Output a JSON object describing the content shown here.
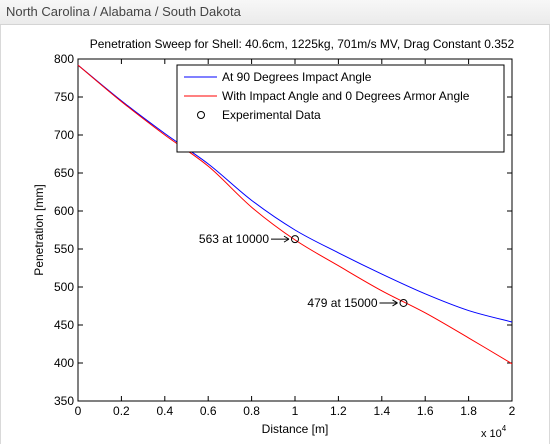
{
  "window": {
    "title": "North Carolina / Alabama / South Dakota"
  },
  "chart_data": {
    "type": "line",
    "title": "Penetration Sweep for Shell: 40.6cm, 1225kg, 701m/s MV, Drag Constant 0.352",
    "xlabel": "Distance [m]",
    "ylabel": "Penetration [mm]",
    "x_exponent_label": "x 10",
    "x_exponent_power": "4",
    "xlim": [
      0,
      20000
    ],
    "ylim": [
      350,
      800
    ],
    "x_ticks": [
      0,
      2000,
      4000,
      6000,
      8000,
      10000,
      12000,
      14000,
      16000,
      18000,
      20000
    ],
    "x_tick_labels": [
      "0",
      "0.2",
      "0.4",
      "0.6",
      "0.8",
      "1",
      "1.2",
      "1.4",
      "1.6",
      "1.8",
      "2"
    ],
    "y_ticks": [
      350,
      400,
      450,
      500,
      550,
      600,
      650,
      700,
      750,
      800
    ],
    "y_tick_labels": [
      "350",
      "400",
      "450",
      "500",
      "550",
      "600",
      "650",
      "700",
      "750",
      "800"
    ],
    "grid": false,
    "legend_position": "top-right",
    "series": [
      {
        "name": "At 90 Degrees Impact Angle",
        "color": "#0000ff",
        "x": [
          0,
          2000,
          4000,
          6000,
          8000,
          10000,
          12000,
          14000,
          16000,
          18000,
          20000
        ],
        "y": [
          792,
          745,
          702,
          662,
          614,
          575,
          545,
          517,
          491,
          469,
          454
        ]
      },
      {
        "name": "With Impact Angle and 0 Degrees Armor Angle",
        "color": "#ff0000",
        "x": [
          0,
          2000,
          4000,
          6000,
          8000,
          10000,
          12000,
          14000,
          16000,
          18000,
          20000
        ],
        "y": [
          792,
          744,
          700,
          659,
          605,
          562,
          528,
          495,
          466,
          433,
          399
        ]
      }
    ],
    "experimental": {
      "name": "Experimental Data",
      "points": [
        {
          "x": 10000,
          "y": 563,
          "label": "563 at 10000"
        },
        {
          "x": 15000,
          "y": 479,
          "label": "479 at 15000"
        }
      ]
    }
  }
}
